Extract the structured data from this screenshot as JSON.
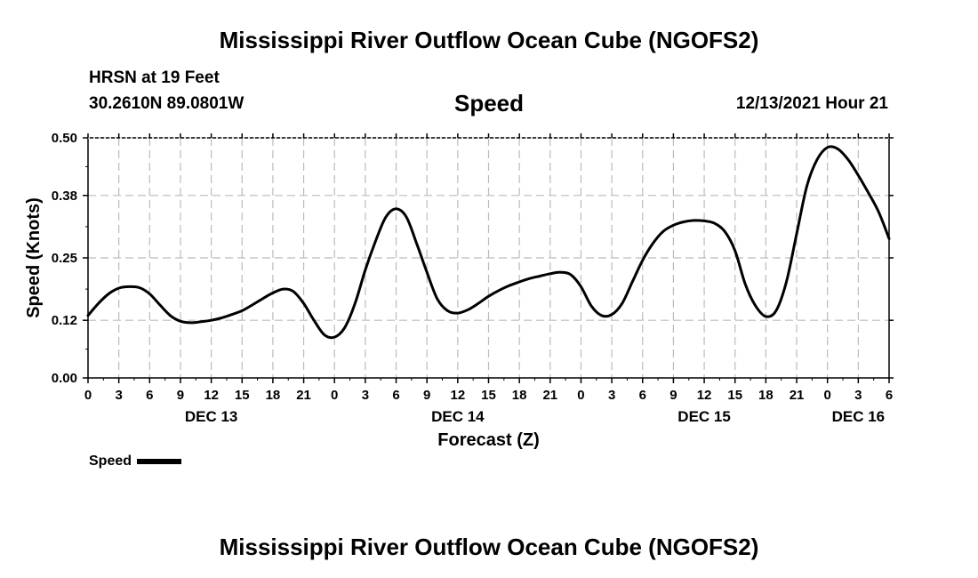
{
  "header": {
    "title": "Mississippi River Outflow Ocean Cube (NGOFS2)",
    "station": "HRSN at 19 Feet",
    "coords": "30.2610N  89.0801W",
    "subtitle": "Speed",
    "datetime": "12/13/2021 Hour 21"
  },
  "footer": {
    "title": "Mississippi River Outflow Ocean Cube (NGOFS2)"
  },
  "legend": {
    "label": "Speed"
  },
  "colors": {
    "line": "#000000",
    "grid": "#bbbbbb"
  },
  "chart_data": {
    "type": "line",
    "title": "Speed",
    "xlabel": "Forecast (Z)",
    "ylabel": "Speed (Knots)",
    "x_unit": "hours since DEC 13 00Z",
    "xlim": [
      0,
      78
    ],
    "ylim": [
      0,
      0.5
    ],
    "yticks": [
      0.0,
      0.12,
      0.25,
      0.38,
      0.5
    ],
    "ytick_labels": [
      "0.00",
      "0.12",
      "0.25",
      "0.38",
      "0.50"
    ],
    "xticks": [
      0,
      3,
      6,
      9,
      12,
      15,
      18,
      21,
      24,
      27,
      30,
      33,
      36,
      39,
      42,
      45,
      48,
      51,
      54,
      57,
      60,
      63,
      66,
      69,
      72,
      75,
      78
    ],
    "xtick_labels": [
      "0",
      "3",
      "6",
      "9",
      "12",
      "15",
      "18",
      "21",
      "0",
      "3",
      "6",
      "9",
      "12",
      "15",
      "18",
      "21",
      "0",
      "3",
      "6",
      "9",
      "12",
      "15",
      "18",
      "21",
      "0",
      "3",
      "6"
    ],
    "day_labels": [
      {
        "x": 12,
        "label": "DEC 13"
      },
      {
        "x": 36,
        "label": "DEC 14"
      },
      {
        "x": 60,
        "label": "DEC 15"
      },
      {
        "x": 75,
        "label": "DEC 16"
      }
    ],
    "grid": true,
    "series": [
      {
        "name": "Speed",
        "x": [
          0,
          1,
          2,
          3,
          4,
          5,
          6,
          7,
          8,
          9,
          10,
          11,
          12,
          13,
          14,
          15,
          16,
          17,
          18,
          19,
          20,
          21,
          22,
          23,
          24,
          25,
          26,
          27,
          28,
          29,
          30,
          31,
          32,
          33,
          34,
          35,
          36,
          37,
          38,
          39,
          40,
          41,
          42,
          43,
          44,
          45,
          46,
          47,
          48,
          49,
          50,
          51,
          52,
          53,
          54,
          55,
          56,
          57,
          58,
          59,
          60,
          61,
          62,
          63,
          64,
          65,
          66,
          67,
          68,
          69,
          70,
          71,
          72,
          73,
          74,
          75,
          76,
          77,
          78
        ],
        "values": [
          0.13,
          0.155,
          0.175,
          0.187,
          0.19,
          0.188,
          0.175,
          0.152,
          0.13,
          0.118,
          0.115,
          0.117,
          0.12,
          0.125,
          0.132,
          0.14,
          0.152,
          0.165,
          0.177,
          0.185,
          0.18,
          0.155,
          0.12,
          0.09,
          0.085,
          0.105,
          0.155,
          0.225,
          0.285,
          0.335,
          0.352,
          0.335,
          0.28,
          0.22,
          0.165,
          0.14,
          0.135,
          0.142,
          0.155,
          0.17,
          0.182,
          0.192,
          0.2,
          0.207,
          0.212,
          0.217,
          0.22,
          0.215,
          0.19,
          0.15,
          0.13,
          0.132,
          0.155,
          0.2,
          0.245,
          0.28,
          0.305,
          0.318,
          0.325,
          0.328,
          0.327,
          0.322,
          0.305,
          0.265,
          0.195,
          0.15,
          0.128,
          0.14,
          0.2,
          0.3,
          0.4,
          0.455,
          0.48,
          0.477,
          0.455,
          0.422,
          0.385,
          0.345,
          0.29
        ]
      }
    ]
  }
}
